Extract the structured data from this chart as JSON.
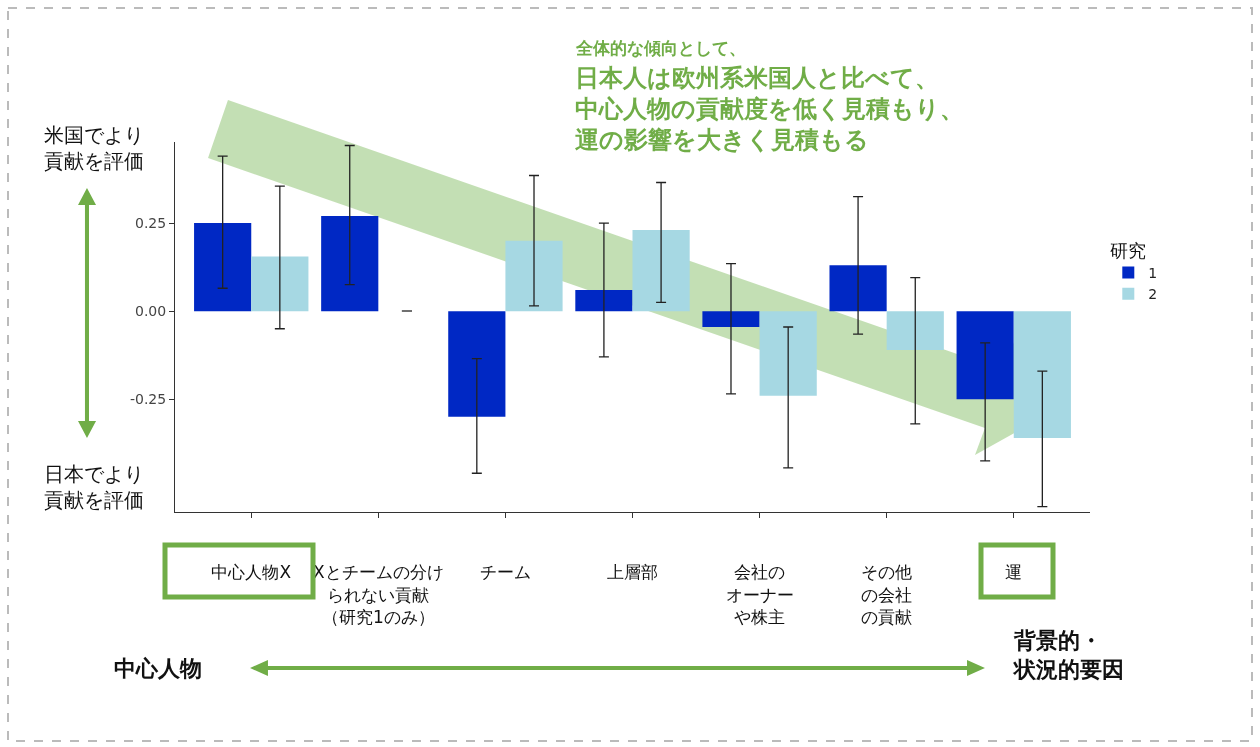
{
  "chart_data": {
    "type": "bar",
    "title": "全体的な傾向として、",
    "subtitle": "日本人は欧州系米国人と比べて、中心人物の貢献度を低く見積もり、運の影響を大きく見積もる",
    "categories": [
      "中心人物X",
      "Xとチームの分けられない貢献（研究1のみ）",
      "チーム",
      "上層部",
      "会社のオーナーや株主",
      "その他の会社の貢献",
      "運"
    ],
    "series": [
      {
        "name": "1",
        "color": "#0028c4",
        "values": [
          0.25,
          0.27,
          -0.3,
          0.06,
          -0.045,
          0.13,
          -0.25
        ],
        "errors": [
          [
            0.065,
            0.44
          ],
          [
            0.075,
            0.47
          ],
          [
            -0.46,
            -0.135
          ],
          [
            -0.13,
            0.25
          ],
          [
            -0.235,
            0.135
          ],
          [
            -0.065,
            0.325
          ],
          [
            -0.425,
            -0.09
          ]
        ]
      },
      {
        "name": "2",
        "color": "#a6d8e3",
        "values": [
          0.155,
          null,
          0.2,
          0.23,
          -0.24,
          -0.11,
          -0.36
        ],
        "errors": [
          [
            -0.05,
            0.355
          ],
          null,
          [
            0.015,
            0.385
          ],
          [
            0.025,
            0.365
          ],
          [
            -0.445,
            -0.045
          ],
          [
            -0.32,
            0.095
          ],
          [
            -0.555,
            -0.17
          ]
        ]
      }
    ],
    "ylim": [
      -0.57,
      0.48
    ],
    "yticks": [
      0.25,
      {
        "value": 0,
        "label": "0.00"
      },
      -0.25
    ],
    "legend_title": "研究",
    "legend": "right",
    "grid": false,
    "annotations": [
      "米国でより貢献を評価",
      "日本でより貢献を評価",
      "中心人物",
      "背景的・状況的要因"
    ]
  }
}
